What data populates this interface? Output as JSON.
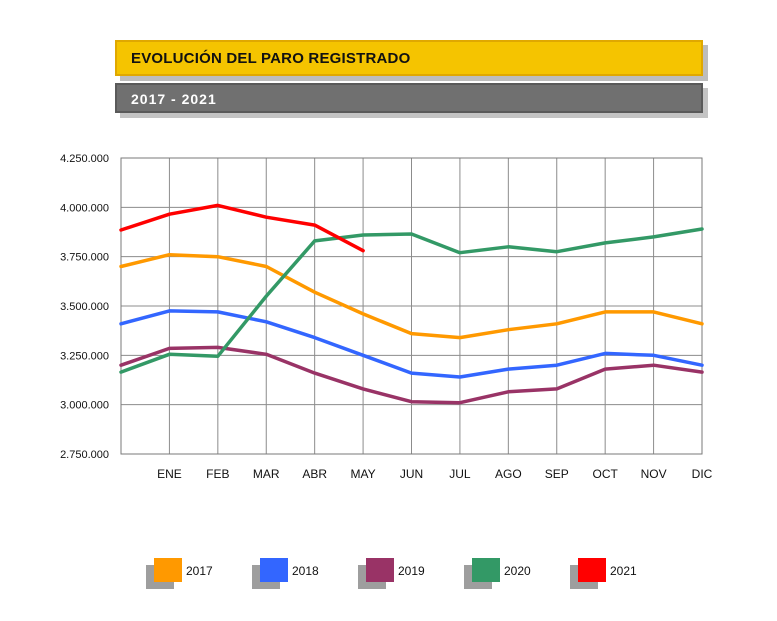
{
  "header": {
    "title": "EVOLUCIÓN DEL PARO REGISTRADO",
    "subtitle": "2017 - 2021"
  },
  "colors": {
    "title_bg": "#f5c400",
    "subtitle_bg": "#707070"
  },
  "chart_data": {
    "type": "line",
    "title": "EVOLUCIÓN DEL PARO REGISTRADO",
    "subtitle": "2017 - 2021",
    "categories": [
      "",
      "ENE",
      "FEB",
      "MAR",
      "ABR",
      "MAY",
      "JUN",
      "JUL",
      "AGO",
      "SEP",
      "OCT",
      "NOV",
      "DIC"
    ],
    "ylim": [
      2750000,
      4250000
    ],
    "yticks": [
      {
        "value": 4250000,
        "label": "4.250.000"
      },
      {
        "value": 4000000,
        "label": "4.000.000"
      },
      {
        "value": 3750000,
        "label": "3.750.000"
      },
      {
        "value": 3500000,
        "label": "3.500.000"
      },
      {
        "value": 3250000,
        "label": "3.250.000"
      },
      {
        "value": 3000000,
        "label": "3.000.000"
      },
      {
        "value": 2750000,
        "label": "2.750.000"
      }
    ],
    "grid": true,
    "legend_position": "bottom",
    "series": [
      {
        "name": "2017",
        "color": "#ff9900",
        "values": [
          3700000,
          3760000,
          3750000,
          3700000,
          3570000,
          3460000,
          3360000,
          3340000,
          3380000,
          3410000,
          3470000,
          3470000,
          3410000
        ]
      },
      {
        "name": "2018",
        "color": "#3366ff",
        "values": [
          3410000,
          3475000,
          3470000,
          3420000,
          3340000,
          3250000,
          3160000,
          3140000,
          3180000,
          3200000,
          3260000,
          3250000,
          3200000
        ]
      },
      {
        "name": "2019",
        "color": "#993366",
        "values": [
          3200000,
          3285000,
          3290000,
          3255000,
          3160000,
          3080000,
          3015000,
          3010000,
          3065000,
          3080000,
          3180000,
          3200000,
          3165000
        ]
      },
      {
        "name": "2020",
        "color": "#339966",
        "values": [
          3165000,
          3255000,
          3245000,
          3550000,
          3830000,
          3860000,
          3865000,
          3770000,
          3800000,
          3775000,
          3820000,
          3850000,
          3890000
        ]
      },
      {
        "name": "2021",
        "color": "#ff0000",
        "values": [
          3885000,
          3965000,
          4010000,
          3950000,
          3910000,
          3780000,
          null,
          null,
          null,
          null,
          null,
          null,
          null
        ]
      }
    ]
  }
}
